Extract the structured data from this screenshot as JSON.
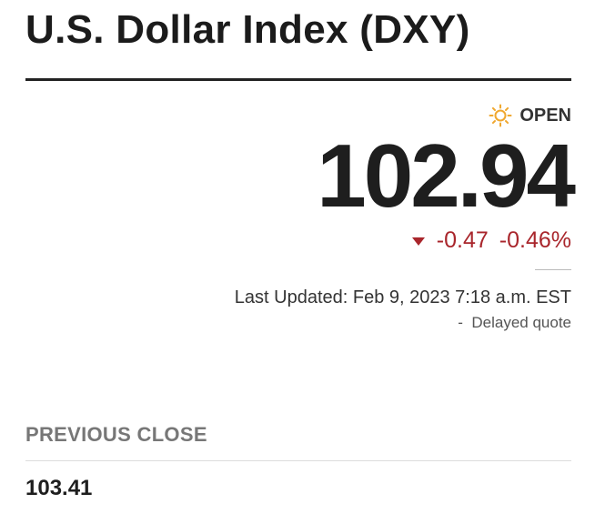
{
  "header": {
    "title": "U.S. Dollar Index (DXY)"
  },
  "quote": {
    "status": "OPEN",
    "price": "102.94",
    "change": "-0.47",
    "change_percent": "-0.46%",
    "last_updated": "Last Updated: Feb 9, 2023 7:18 a.m. EST",
    "delay_note": "-  Delayed quote"
  },
  "previous_close": {
    "label": "PREVIOUS CLOSE",
    "value": "103.41"
  }
}
